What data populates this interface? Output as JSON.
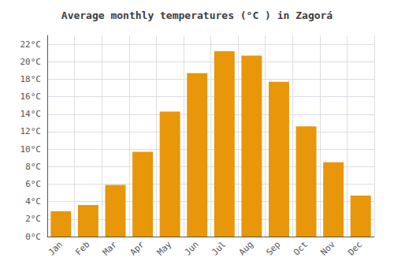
{
  "chart_data": {
    "type": "bar",
    "title": "Average monthly temperatures (°C ) in Zagorá",
    "categories": [
      "Jan",
      "Feb",
      "Mar",
      "Apr",
      "May",
      "Jun",
      "Jul",
      "Aug",
      "Sep",
      "Oct",
      "Nov",
      "Dec"
    ],
    "values": [
      2.9,
      3.6,
      5.9,
      9.7,
      14.3,
      18.7,
      21.2,
      20.7,
      17.7,
      12.6,
      8.5,
      4.7
    ],
    "color": "#E8960A",
    "ylim": [
      0,
      23
    ],
    "yticks": [
      {
        "value": 0,
        "label": "0°C"
      },
      {
        "value": 2,
        "label": "2°C"
      },
      {
        "value": 4,
        "label": "4°C"
      },
      {
        "value": 6,
        "label": "6°C"
      },
      {
        "value": 8,
        "label": "8°C"
      },
      {
        "value": 10,
        "label": "10°C"
      },
      {
        "value": 12,
        "label": "12°C"
      },
      {
        "value": 14,
        "label": "14°C"
      },
      {
        "value": 16,
        "label": "16°C"
      },
      {
        "value": 18,
        "label": "18°C"
      },
      {
        "value": 20,
        "label": "20°C"
      },
      {
        "value": 22,
        "label": "22°C"
      }
    ],
    "grid": true
  }
}
